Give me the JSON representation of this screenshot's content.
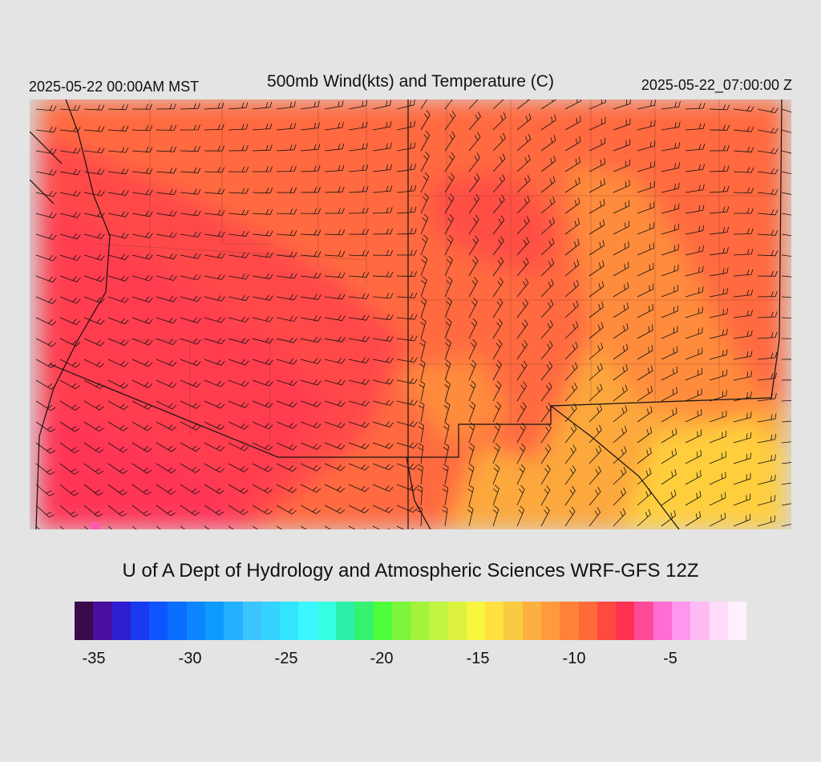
{
  "header": {
    "local_time": "2025-05-22 00:00AM MST",
    "title": "500mb Wind(kts) and Temperature (C)",
    "valid_time": "2025-05-22_07:00:00 Z"
  },
  "footer": {
    "credit": "U of A Dept of Hydrology and Atmospheric Sciences WRF-GFS 12Z"
  },
  "colorbar": {
    "colors": [
      "#3a0a4a",
      "#4a0fa0",
      "#2f1ed0",
      "#1a3af0",
      "#0f55ff",
      "#0a6eff",
      "#0b86ff",
      "#0e9bff",
      "#22b0ff",
      "#3cc4ff",
      "#35d3ff",
      "#33e4ff",
      "#3cf7ff",
      "#35ffe2",
      "#2df0a8",
      "#35f270",
      "#4cff3a",
      "#7cf53a",
      "#a2f23e",
      "#c0f440",
      "#dcf23f",
      "#f8f63f",
      "#ffe23f",
      "#fbcb3f",
      "#fbb03f",
      "#ff9b3c",
      "#ff8238",
      "#ff6a38",
      "#ff4a40",
      "#ff3254",
      "#ff4a9a",
      "#ff6ed2",
      "#ff96ee",
      "#ffbcf4",
      "#ffdcfa",
      "#fff0fe"
    ],
    "tick_labels": [
      "-35",
      "-30",
      "-25",
      "-20",
      "-15",
      "-10",
      "-5"
    ]
  },
  "map": {
    "field": "500mb temperature (C) with wind barbs (kts)",
    "palette": {
      "coldest": "#ff3456",
      "cold": "#ff4a48",
      "mid": "#ff6a40",
      "warm": "#ff8c3c",
      "warmer": "#fca83c",
      "warmest": "#ffce3e",
      "pink_speck": "#ff5ab0",
      "outside": "#d6d6d6"
    }
  }
}
